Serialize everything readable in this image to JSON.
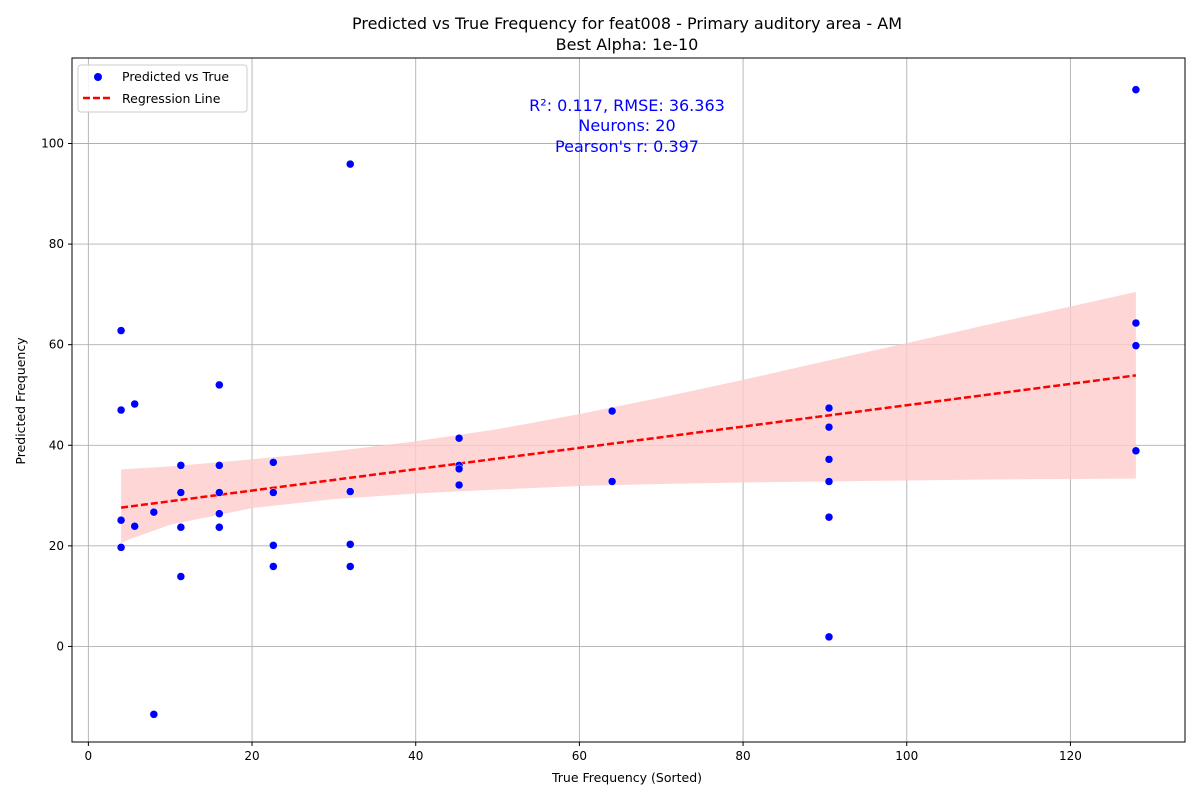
{
  "chart_data": {
    "type": "scatter",
    "title": "Predicted vs True Frequency for feat008 - Primary auditory area - AM",
    "subtitle": "Best Alpha: 1e-10",
    "xlabel": "True Frequency (Sorted)",
    "ylabel": "Predicted Frequency",
    "xlim": [
      -2,
      134
    ],
    "ylim": [
      -19,
      117
    ],
    "xticks": [
      0,
      20,
      40,
      60,
      80,
      100,
      120
    ],
    "yticks": [
      0,
      20,
      40,
      60,
      80,
      100
    ],
    "grid": true,
    "legend_position": "top-left",
    "legend": [
      "Predicted vs True",
      "Regression Line"
    ],
    "point_color": "#0000ff",
    "line_color": "#ff0000",
    "band_color": "#ffcccc",
    "annotation_lines": [
      "R²: 0.117, RMSE: 36.363",
      "Neurons: 20",
      "Pearson's r: 0.397"
    ],
    "points": [
      {
        "x": 4,
        "y": 62.8
      },
      {
        "x": 4,
        "y": 47.0
      },
      {
        "x": 4,
        "y": 25.1
      },
      {
        "x": 4,
        "y": 19.7
      },
      {
        "x": 5.66,
        "y": 48.2
      },
      {
        "x": 5.66,
        "y": 23.9
      },
      {
        "x": 8,
        "y": 26.7
      },
      {
        "x": 8,
        "y": -13.5
      },
      {
        "x": 11.3,
        "y": 36.0
      },
      {
        "x": 11.3,
        "y": 30.6
      },
      {
        "x": 11.3,
        "y": 23.7
      },
      {
        "x": 11.3,
        "y": 13.9
      },
      {
        "x": 16,
        "y": 52.0
      },
      {
        "x": 16,
        "y": 36.0
      },
      {
        "x": 16,
        "y": 30.6
      },
      {
        "x": 16,
        "y": 26.4
      },
      {
        "x": 16,
        "y": 23.7
      },
      {
        "x": 22.6,
        "y": 36.6
      },
      {
        "x": 22.6,
        "y": 30.6
      },
      {
        "x": 22.6,
        "y": 20.1
      },
      {
        "x": 22.6,
        "y": 15.9
      },
      {
        "x": 32,
        "y": 95.9
      },
      {
        "x": 32,
        "y": 30.8
      },
      {
        "x": 32,
        "y": 20.3
      },
      {
        "x": 32,
        "y": 15.9
      },
      {
        "x": 45.3,
        "y": 41.4
      },
      {
        "x": 45.3,
        "y": 36.0
      },
      {
        "x": 45.3,
        "y": 35.3
      },
      {
        "x": 45.3,
        "y": 32.1
      },
      {
        "x": 64,
        "y": 46.8
      },
      {
        "x": 64,
        "y": 32.8
      },
      {
        "x": 90.5,
        "y": 47.4
      },
      {
        "x": 90.5,
        "y": 43.6
      },
      {
        "x": 90.5,
        "y": 37.2
      },
      {
        "x": 90.5,
        "y": 32.8
      },
      {
        "x": 90.5,
        "y": 25.7
      },
      {
        "x": 90.5,
        "y": 1.9
      },
      {
        "x": 128,
        "y": 110.7
      },
      {
        "x": 128,
        "y": 64.3
      },
      {
        "x": 128,
        "y": 59.8
      },
      {
        "x": 128,
        "y": 38.9
      }
    ],
    "regression_line": {
      "x": [
        4,
        128
      ],
      "y": [
        27.6,
        53.9
      ]
    },
    "confidence_band": {
      "x": [
        4,
        5,
        10,
        20,
        30,
        40,
        50,
        60,
        70,
        80,
        90,
        100,
        110,
        120,
        128
      ],
      "upper": [
        35.2,
        35.3,
        35.8,
        37.2,
        38.8,
        40.8,
        43.2,
        46.2,
        49.5,
        53.0,
        56.7,
        60.3,
        64.0,
        67.6,
        70.5
      ],
      "lower": [
        20.5,
        21.3,
        24.2,
        27.5,
        29.3,
        30.4,
        31.2,
        31.9,
        32.3,
        32.6,
        32.8,
        33.0,
        33.2,
        33.3,
        33.4
      ]
    }
  }
}
